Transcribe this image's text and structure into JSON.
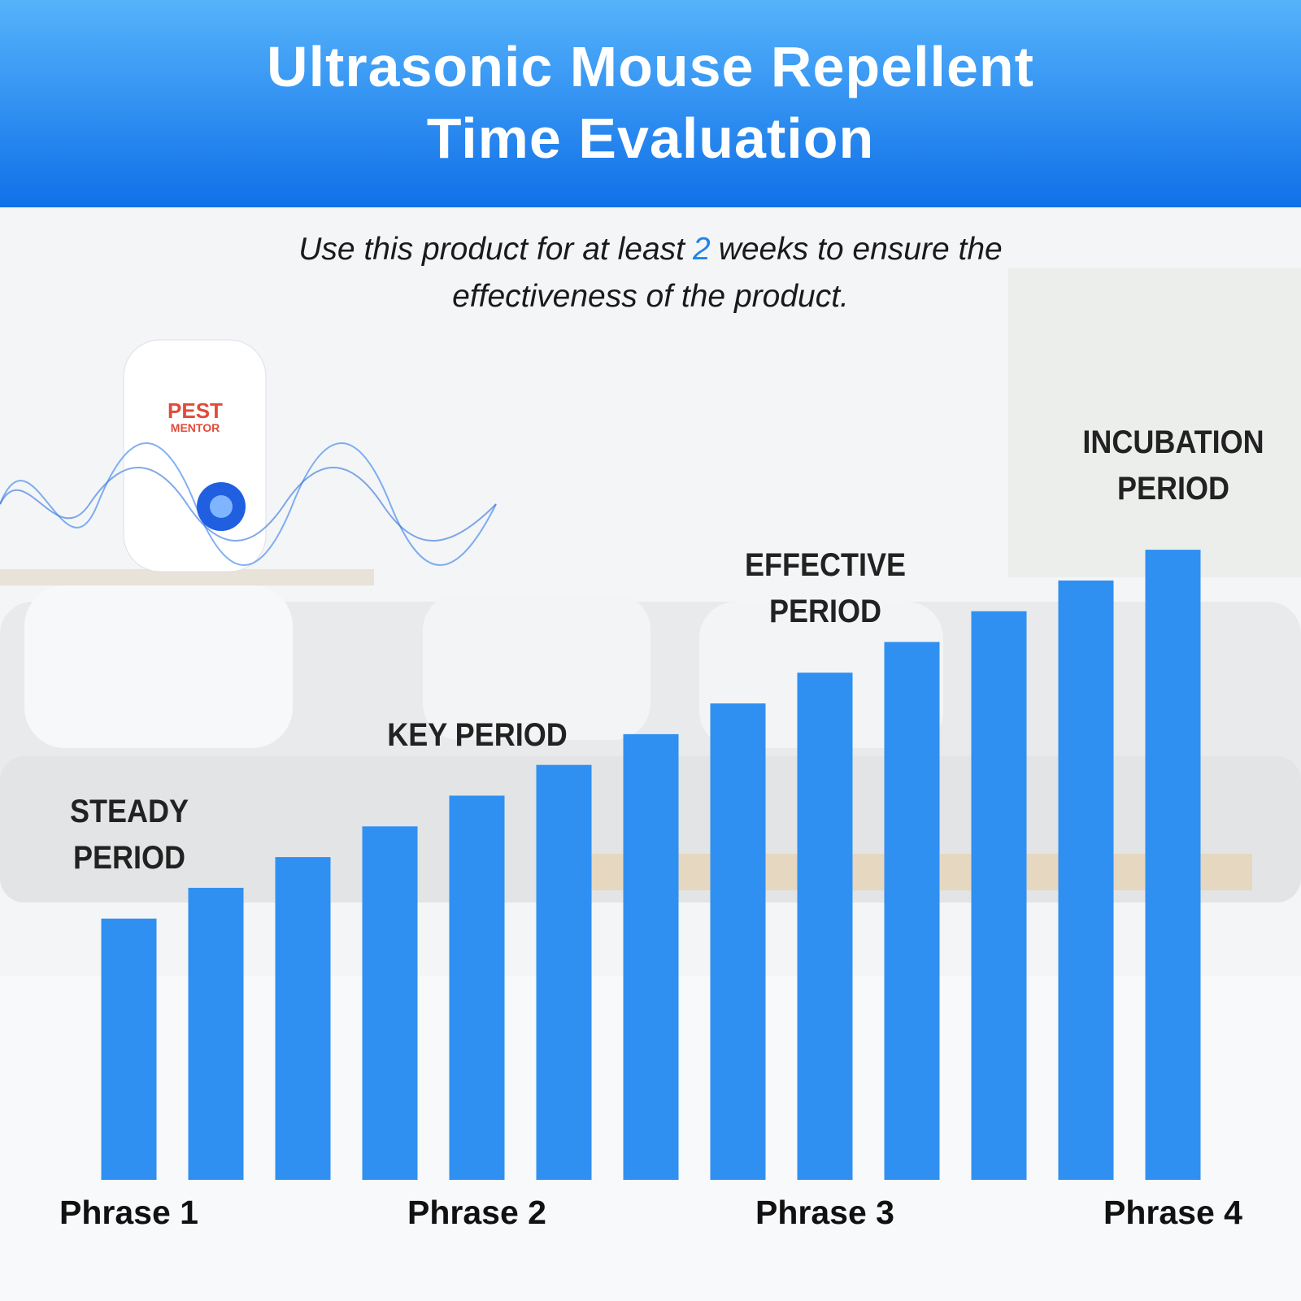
{
  "chart_data": {
    "type": "bar",
    "title": "Ultrasonic Mouse Repellent Time Evaluation",
    "subtitle_before": "Use this product for at least",
    "subtitle_highlight": "2",
    "subtitle_after": "weeks to ensure the effectiveness of the product.",
    "categories": [
      "Phrase 1",
      null,
      null,
      null,
      "Phrase 2",
      null,
      null,
      null,
      "Phrase 3",
      null,
      null,
      null,
      "Phrase 4"
    ],
    "period_labels": [
      "STEADY PERIOD",
      null,
      null,
      null,
      "KEY PERIOD",
      null,
      null,
      null,
      "EFFECTIVE PERIOD",
      null,
      null,
      null,
      "INCUBATION PERIOD"
    ],
    "values": [
      8.5,
      9.5,
      10.5,
      11.5,
      12.5,
      13.5,
      14.5,
      15.5,
      16.5,
      17.5,
      18.5,
      19.5,
      20.5
    ],
    "color": "#2f90f2"
  },
  "decor": {
    "brand_lines": [
      "PEST",
      "MENTOR"
    ]
  }
}
